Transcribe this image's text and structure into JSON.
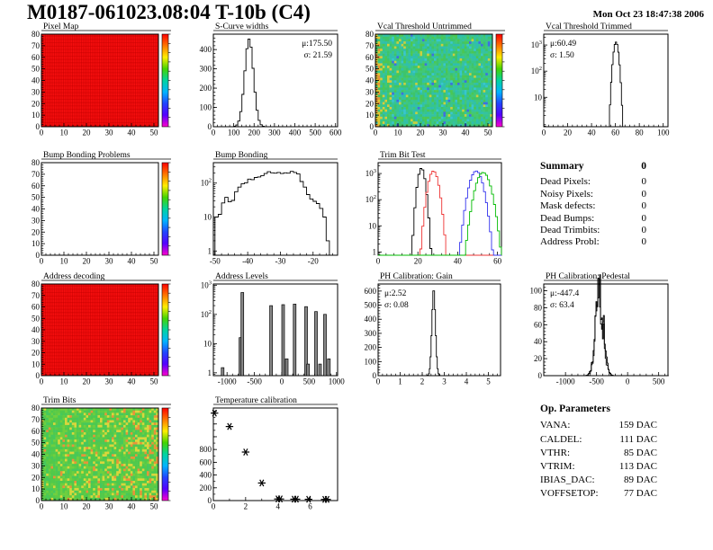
{
  "header": {
    "title": "M0187-061023.08:04 T-10b (C4)",
    "datetime": "Mon Oct 23 18:47:38 2006"
  },
  "colors": {
    "frame": "#000000",
    "hist_line": "#000000",
    "heat_red": "#f30d0d",
    "heat_red_grid": "#c40000",
    "spike_fill": "#888888",
    "colorbar": [
      "#ff0000",
      "#ff7700",
      "#ffee00",
      "#44d400",
      "#00d4a0",
      "#00b4ff",
      "#2244ff",
      "#5500ff",
      "#ff00cc"
    ],
    "trimbit_series": [
      "#000000",
      "#ee3333",
      "#3333ee",
      "#00bb00"
    ]
  },
  "summary": {
    "title": "Summary",
    "value": "0",
    "rows": [
      {
        "label": "Dead Pixels:",
        "value": "0"
      },
      {
        "label": "Noisy Pixels:",
        "value": "0"
      },
      {
        "label": "Mask defects:",
        "value": "0"
      },
      {
        "label": "Dead Bumps:",
        "value": "0"
      },
      {
        "label": "Dead Trimbits:",
        "value": "0"
      },
      {
        "label": "Address Probl:",
        "value": "0"
      }
    ]
  },
  "op_parameters": {
    "title": "Op. Parameters",
    "rows": [
      {
        "label": "VANA:",
        "value": "159 DAC"
      },
      {
        "label": "CALDEL:",
        "value": "111 DAC"
      },
      {
        "label": "VTHR:",
        "value": "85 DAC"
      },
      {
        "label": "VTRIM:",
        "value": "113 DAC"
      },
      {
        "label": "IBIAS_DAC:",
        "value": "89 DAC"
      },
      {
        "label": "VOFFSETOP:",
        "value": "77 DAC"
      }
    ]
  },
  "chart_data": [
    {
      "name": "pixel-map",
      "type": "heatmap",
      "title": "Pixel Map",
      "fill": "uniform-red",
      "colorbar": true,
      "xlim": [
        0,
        52
      ],
      "xticks": [
        0,
        10,
        20,
        30,
        40,
        50
      ],
      "ylim": [
        0,
        80
      ],
      "yticks": [
        0,
        10,
        20,
        30,
        40,
        50,
        60,
        70,
        80
      ]
    },
    {
      "name": "s-curve-widths",
      "type": "histogram",
      "title": "S-Curve widths",
      "scale": "linear",
      "xlim": [
        0,
        610
      ],
      "xticks": [
        0,
        100,
        200,
        300,
        400,
        500,
        600
      ],
      "ylim": [
        0,
        480
      ],
      "yticks": [
        0,
        100,
        200,
        300,
        400
      ],
      "stats": {
        "mu_label": "μ:175.50",
        "sigma_label": "σ: 21.59"
      },
      "stats_pos": "tr",
      "dist": {
        "shape": "gauss",
        "mu": 175.5,
        "sigma": 21.6,
        "peak": 455,
        "bin": 10,
        "range": [
          60,
          300
        ]
      }
    },
    {
      "name": "vcal-threshold-untrimmed",
      "type": "heatmap",
      "title": "Vcal Threshold Untrimmed",
      "fill": "noise-threshold",
      "colorbar": true,
      "xlim": [
        0,
        52
      ],
      "xticks": [
        0,
        10,
        20,
        30,
        40,
        50
      ],
      "ylim": [
        0,
        80
      ],
      "yticks": [
        0,
        10,
        20,
        30,
        40,
        50,
        60,
        70,
        80
      ]
    },
    {
      "name": "vcal-threshold-trimmed",
      "type": "histogram",
      "title": "Vcal Threshold Trimmed",
      "scale": "log",
      "xlim": [
        0,
        104
      ],
      "xticks": [
        0,
        20,
        40,
        60,
        80,
        100
      ],
      "ylim": [
        0.75,
        2600
      ],
      "yticks": [
        10,
        100,
        1000
      ],
      "stats": {
        "mu_label": "μ:60.49",
        "sigma_label": "σ: 1.50"
      },
      "stats_pos": "tl",
      "dist": {
        "shape": "gauss",
        "mu": 60.49,
        "sigma": 1.5,
        "peak": 1300,
        "bin": 1,
        "range": [
          52,
          70
        ]
      }
    },
    {
      "name": "bump-bonding-problems",
      "type": "heatmap",
      "title": "Bump Bonding Problems",
      "fill": "empty",
      "colorbar": true,
      "xlim": [
        0,
        52
      ],
      "xticks": [
        0,
        10,
        20,
        30,
        40,
        50
      ],
      "ylim": [
        0,
        80
      ],
      "yticks": [
        0,
        10,
        20,
        30,
        40,
        50,
        60,
        70,
        80
      ]
    },
    {
      "name": "bump-bonding",
      "type": "histogram",
      "title": "Bump Bonding",
      "scale": "log",
      "xlim": [
        -50.5,
        -12.5
      ],
      "xticks": [
        -50,
        -40,
        -30,
        -20
      ],
      "ylim": [
        0.75,
        400
      ],
      "yticks": [
        1,
        10,
        100
      ],
      "bins": {
        "start": -50,
        "width": 1,
        "counts": [
          10,
          12,
          26,
          38,
          28,
          31,
          56,
          76,
          96,
          102,
          131,
          126,
          146,
          152,
          166,
          191,
          216,
          201,
          196,
          206,
          191,
          201,
          196,
          221,
          206,
          186,
          111,
          76,
          46,
          34,
          29,
          25,
          18,
          10,
          2
        ]
      }
    },
    {
      "name": "trim-bit-test",
      "type": "multi-histogram",
      "title": "Trim Bit Test",
      "scale": "log",
      "xlim": [
        0,
        62
      ],
      "xticks": [
        0,
        20,
        40,
        60
      ],
      "ylim": [
        0.75,
        2600
      ],
      "yticks": [
        1,
        10,
        100,
        1000
      ],
      "series": [
        {
          "name": "trim-bit-black",
          "color": "#000000",
          "mu": 21.8,
          "sigma": 1.25,
          "peak": 1600,
          "bin": 1
        },
        {
          "name": "trim-bit-red",
          "color": "#ee3333",
          "mu": 27.8,
          "sigma": 1.7,
          "peak": 1250,
          "bin": 1
        },
        {
          "name": "trim-bit-blue",
          "color": "#3333ee",
          "mu": 49.3,
          "sigma": 2.2,
          "peak": 1250,
          "bin": 1
        },
        {
          "name": "trim-bit-green",
          "color": "#00bb00",
          "mu": 52.8,
          "sigma": 2.4,
          "peak": 1100,
          "bin": 1
        }
      ]
    },
    {
      "name": "address-decoding",
      "type": "heatmap",
      "title": "Address decoding",
      "fill": "uniform-red",
      "colorbar": true,
      "xlim": [
        0,
        52
      ],
      "xticks": [
        0,
        10,
        20,
        30,
        40,
        50
      ],
      "ylim": [
        0,
        80
      ],
      "yticks": [
        0,
        10,
        20,
        30,
        40,
        50,
        60,
        70,
        80
      ]
    },
    {
      "name": "address-levels",
      "type": "spikes",
      "title": "Address Levels",
      "scale": "log",
      "xlim": [
        -1250,
        1020
      ],
      "xticks": [
        -1000,
        -500,
        0,
        500,
        1000
      ],
      "ylim": [
        0.8,
        1100
      ],
      "yticks": [
        1,
        10,
        100,
        1000
      ],
      "spikes": [
        [
          -1080,
          1.5
        ],
        [
          -755,
          16
        ],
        [
          -720,
          560
        ],
        [
          -195,
          200
        ],
        [
          25,
          215
        ],
        [
          90,
          3
        ],
        [
          235,
          225
        ],
        [
          445,
          185
        ],
        [
          480,
          2
        ],
        [
          625,
          125
        ],
        [
          700,
          2
        ],
        [
          790,
          100
        ],
        [
          860,
          3
        ]
      ]
    },
    {
      "name": "ph-calibration-gain",
      "type": "histogram",
      "title": "PH Calibration: Gain",
      "scale": "linear",
      "xlim": [
        0,
        5.55
      ],
      "xticks": [
        0,
        1,
        2,
        3,
        4,
        5
      ],
      "ylim": [
        0,
        650
      ],
      "yticks": [
        0,
        100,
        200,
        300,
        400,
        500,
        600
      ],
      "stats": {
        "mu_label": "μ:2.52",
        "sigma_label": "σ: 0.08"
      },
      "stats_pos": "tl",
      "dist": {
        "shape": "gauss",
        "mu": 2.52,
        "sigma": 0.08,
        "peak": 620,
        "bin": 0.04,
        "range": [
          2.1,
          3.0
        ]
      }
    },
    {
      "name": "ph-calibration-pedestal",
      "type": "histogram",
      "title": "PH Calibration: Pedestal",
      "scale": "linear",
      "xlim": [
        -1350,
        650
      ],
      "xticks": [
        -1000,
        -500,
        0,
        500
      ],
      "ylim": [
        0,
        108
      ],
      "yticks": [
        0,
        20,
        40,
        60,
        80,
        100
      ],
      "stats": {
        "mu_label": "μ:-447.4",
        "sigma_label": "σ: 63.4"
      },
      "stats_pos": "tl",
      "dist": {
        "shape": "gauss",
        "mu": -450,
        "sigma": 62,
        "peak": 95,
        "bin": 15,
        "range": [
          -720,
          -230
        ],
        "noise": 0.35
      }
    },
    {
      "name": "trim-bits",
      "type": "heatmap",
      "title": "Trim Bits",
      "fill": "noise-trim",
      "colorbar": true,
      "xlim": [
        0,
        52
      ],
      "xticks": [
        0,
        10,
        20,
        30,
        40,
        50
      ],
      "ylim": [
        0,
        80
      ],
      "yticks": [
        0,
        10,
        20,
        30,
        40,
        50,
        60,
        70,
        80
      ]
    },
    {
      "name": "temperature-calibration",
      "type": "scatter",
      "title": "Temperature calibration",
      "marker": "star",
      "xlim": [
        0,
        7.7
      ],
      "xticks": [
        0,
        2,
        4,
        6
      ],
      "xminor": [
        1,
        3,
        5,
        7
      ],
      "ylim": [
        0,
        1450
      ],
      "yticks": [
        0,
        200,
        400,
        600,
        800
      ],
      "yticks_unlabeled": [
        1000,
        1200,
        1400
      ],
      "yminor_step": 100,
      "points": [
        [
          0.07,
          1370
        ],
        [
          1,
          1160
        ],
        [
          2,
          760
        ],
        [
          3,
          275
        ],
        [
          4,
          25
        ],
        [
          4.15,
          25
        ],
        [
          5,
          22
        ],
        [
          5.15,
          22
        ],
        [
          5.9,
          20
        ],
        [
          6.9,
          18
        ],
        [
          7.05,
          18
        ]
      ]
    }
  ]
}
